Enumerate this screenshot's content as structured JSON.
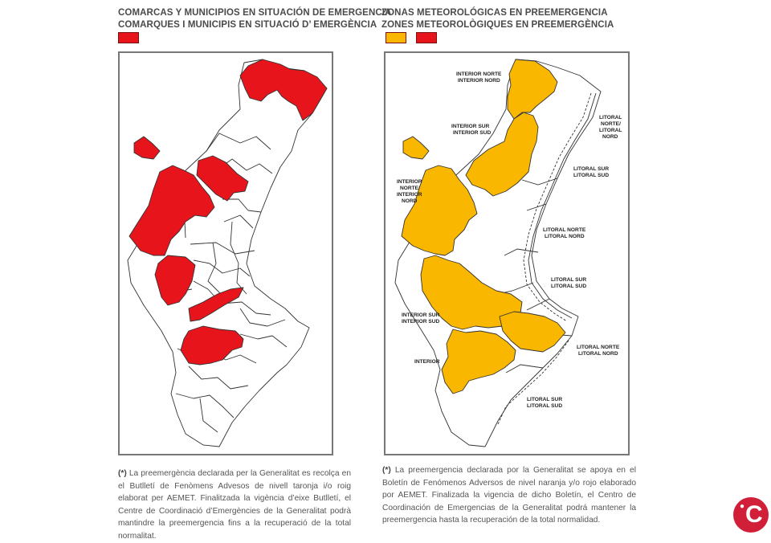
{
  "left_panel": {
    "title_line1": "COMARCAS Y MUNICIPIOS EN SITUACIÓN DE EMERGENCIA",
    "title_line2": "COMARQUES I MUNICIPIS EN SITUACIÓ D’ EMERGÈNCIA",
    "legend_color": "#e8141c",
    "note_marker": "(*)",
    "note_text": " La preemergència declarada per la Generalitat es recolça en el Butlletí de Fenòmens Advesos de nivell taronja i/o roig elaborat per AEMET. Finalitzada la vigència d’eixe Butlletí, el Centre de Coordinació d’Emergències de la Generalitat podrà mantindre la preemergencia fins a la recuperació de la total normalitat."
  },
  "right_panel": {
    "title_line1": "ZONAS METEOROLÓGICAS EN PREEMERGENCIA",
    "title_line2": "ZONES METEOROLÒGIQUES EN PREEMERGÈNCIA",
    "legend_colors": [
      "#f9b700",
      "#e8141c"
    ],
    "note_marker": "(*)",
    "note_text": " La preemergencia declarada por la Generalitat se apoya en el Boletín de Fenómenos Adversos de nivel naranja y/o rojo elaborado por AEMET. Finalizada la vigencia de dicho Boletín, el Centro de Coordinación de Emergencias de la Generalitat podrá mantener la preemergencia hasta la recuperación de la total normalidad.",
    "zones": [
      {
        "line1": "INTERIOR NORTE",
        "line2": "INTERIOR NORD",
        "line3": ""
      },
      {
        "line1": "LITORAL",
        "line2": "NORTE/",
        "line3": "LITORAL",
        "line4": "NORD"
      },
      {
        "line1": "INTERIOR SUR",
        "line2": "INTERIOR SUD",
        "line3": ""
      },
      {
        "line1": "LITORAL SUR",
        "line2": "LITORAL SUD",
        "line3": ""
      },
      {
        "line1": "INTERIOR",
        "line2": "NORTE/",
        "line3": "INTERIOR",
        "line4": "NORD"
      },
      {
        "line1": "LITORAL NORTE",
        "line2": "LITORAL NORD",
        "line3": ""
      },
      {
        "line1": "LITORAL SUR",
        "line2": "LITORAL SUD",
        "line3": ""
      },
      {
        "line1": "INTERIOR SUR",
        "line2": "INTERIOR SUD",
        "line3": ""
      },
      {
        "line1": "LITORAL  NORTE",
        "line2": "LITORAL NORD",
        "line3": ""
      },
      {
        "line1": "INTERIOR",
        "line2": "",
        "line3": ""
      },
      {
        "line1": "LITORAL SUR",
        "line2": "LITORAL SUD",
        "line3": ""
      }
    ]
  },
  "logo": {
    "text": "C",
    "color": "#d11f3a"
  }
}
